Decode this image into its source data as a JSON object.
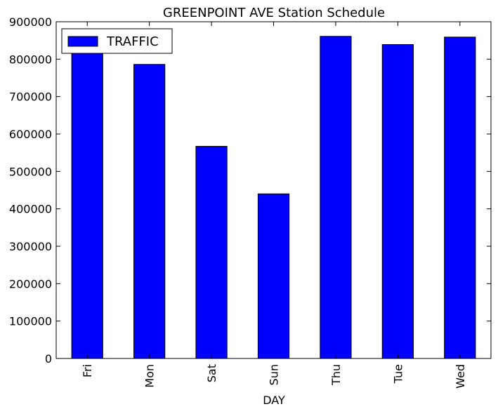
{
  "chart_data": {
    "type": "bar",
    "title": "GREENPOINT AVE Station Schedule",
    "xlabel": "DAY",
    "ylabel": "",
    "categories": [
      "Fri",
      "Mon",
      "Sat",
      "Sun",
      "Thu",
      "Tue",
      "Wed"
    ],
    "series": [
      {
        "name": "TRAFFIC",
        "values": [
          822000,
          786000,
          567000,
          440000,
          861000,
          839000,
          859000
        ],
        "color": "#0000ff"
      }
    ],
    "ylim": [
      0,
      900000
    ],
    "yticks": [
      "0",
      "100000",
      "200000",
      "300000",
      "400000",
      "500000",
      "600000",
      "700000",
      "800000",
      "900000"
    ],
    "grid": false,
    "legend_position": "top-left"
  }
}
